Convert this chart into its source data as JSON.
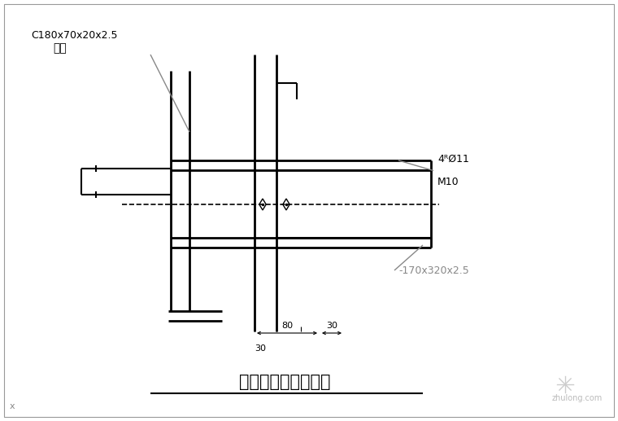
{
  "bg_color": "#ffffff",
  "line_color": "#000000",
  "gray_line_color": "#888888",
  "title": "端部墙梁转角处连接",
  "label_line1": "C180x70x20x2.5",
  "label_line2": "墙梁",
  "label_bolt1": "4ᴿØ11",
  "label_bolt2": "M10",
  "label_plate": "-170x320x2.5",
  "dim_80": "80",
  "dim_30a": "30",
  "dim_30b": "30",
  "watermark": "zhulong.com"
}
